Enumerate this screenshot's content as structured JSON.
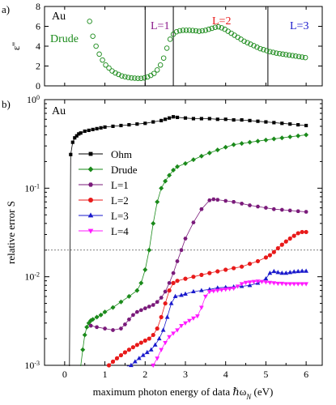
{
  "chart_data": [
    {
      "panel_label": "a)",
      "type": "scatter",
      "title": "",
      "xlabel": "",
      "ylabel": "ε''",
      "xlim": [
        -0.5,
        6.4
      ],
      "ylim": [
        0,
        8
      ],
      "yticks": [
        "0",
        "2",
        "4",
        "6",
        "8"
      ],
      "grid": false,
      "material_label": "Au",
      "series": [
        {
          "name": "Drude",
          "color": "#1a8a1a",
          "marker": "open-circle",
          "x": [
            0.62,
            0.7,
            0.78,
            0.86,
            0.94,
            1.02,
            1.1,
            1.18,
            1.26,
            1.34,
            1.42,
            1.5,
            1.58,
            1.66,
            1.74,
            1.82,
            1.9,
            1.98,
            2.06,
            2.14,
            2.22,
            2.3,
            2.38,
            2.46,
            2.54,
            2.62,
            2.7,
            2.78,
            2.86,
            2.94,
            3.02,
            3.1,
            3.18,
            3.26,
            3.34,
            3.42,
            3.5,
            3.58,
            3.66,
            3.74,
            3.82,
            3.9,
            3.98,
            4.06,
            4.14,
            4.22,
            4.3,
            4.38,
            4.46,
            4.54,
            4.62,
            4.7,
            4.78,
            4.86,
            4.94,
            5.02,
            5.1,
            5.18,
            5.26,
            5.34,
            5.42,
            5.5,
            5.58,
            5.66,
            5.74,
            5.82,
            5.9,
            5.98
          ],
          "y": [
            6.5,
            5.0,
            4.0,
            3.2,
            2.6,
            2.1,
            1.8,
            1.5,
            1.3,
            1.15,
            1.0,
            0.92,
            0.85,
            0.8,
            0.78,
            0.76,
            0.76,
            0.8,
            0.9,
            1.05,
            1.25,
            1.6,
            2.1,
            2.8,
            3.8,
            4.7,
            5.2,
            5.45,
            5.55,
            5.6,
            5.6,
            5.6,
            5.58,
            5.55,
            5.5,
            5.55,
            5.6,
            5.7,
            5.8,
            5.9,
            5.95,
            5.85,
            5.7,
            5.5,
            5.3,
            5.1,
            4.9,
            4.7,
            4.5,
            4.35,
            4.2,
            4.05,
            3.9,
            3.75,
            3.65,
            3.55,
            3.45,
            3.38,
            3.3,
            3.25,
            3.2,
            3.15,
            3.1,
            3.05,
            3.0,
            2.95,
            2.9,
            2.85
          ]
        }
      ],
      "vertical_lines_x": [
        2.0,
        2.7,
        5.05
      ],
      "region_labels": [
        {
          "text": "L=1",
          "color": "#8b1a8b"
        },
        {
          "text": "L=2",
          "color": "#e81a1a"
        },
        {
          "text": "L=3",
          "color": "#1a1acc"
        }
      ]
    },
    {
      "panel_label": "b)",
      "type": "line",
      "title": "",
      "xlabel": "maximum photon energy of data ℏω",
      "xlabel_subscript": "N",
      "xlabel_unit": " (eV)",
      "ylabel": "relative error S",
      "xlim": [
        -0.5,
        6.4
      ],
      "ylim": [
        0.001,
        1
      ],
      "log_y": true,
      "xticks": [
        "0",
        "1",
        "2",
        "3",
        "4",
        "5",
        "6"
      ],
      "yticks": [
        {
          "base": "10",
          "exp": "0"
        },
        {
          "base": "10",
          "exp": "-1"
        },
        {
          "base": "10",
          "exp": "-2"
        },
        {
          "base": "10",
          "exp": "-3"
        }
      ],
      "grid": false,
      "legend_position": "center-left",
      "material_label": "Au",
      "horizontal_reference_y": 0.02,
      "series": [
        {
          "name": "Ohm",
          "color": "#000000",
          "marker": "square",
          "x": [
            0.12,
            0.15,
            0.2,
            0.25,
            0.3,
            0.35,
            0.4,
            0.5,
            0.6,
            0.7,
            0.8,
            0.9,
            1.0,
            1.2,
            1.4,
            1.6,
            1.8,
            2.0,
            2.2,
            2.4,
            2.5,
            2.6,
            2.7,
            2.8,
            3.0,
            3.2,
            3.4,
            3.6,
            3.8,
            4.0,
            4.2,
            4.4,
            4.6,
            4.8,
            5.0,
            5.2,
            5.4,
            5.6,
            5.8,
            6.0
          ],
          "y": [
            0.0008,
            0.24,
            0.33,
            0.37,
            0.39,
            0.41,
            0.42,
            0.44,
            0.45,
            0.46,
            0.47,
            0.48,
            0.49,
            0.5,
            0.51,
            0.52,
            0.53,
            0.54,
            0.56,
            0.58,
            0.6,
            0.62,
            0.64,
            0.63,
            0.62,
            0.61,
            0.61,
            0.61,
            0.6,
            0.6,
            0.59,
            0.59,
            0.58,
            0.57,
            0.56,
            0.55,
            0.54,
            0.53,
            0.52,
            0.51
          ]
        },
        {
          "name": "Drude",
          "color": "#1a8a1a",
          "marker": "diamond",
          "x": [
            0.4,
            0.45,
            0.5,
            0.55,
            0.6,
            0.65,
            0.7,
            0.8,
            0.9,
            1.0,
            1.2,
            1.4,
            1.6,
            1.8,
            1.9,
            2.0,
            2.1,
            2.2,
            2.3,
            2.4,
            2.5,
            2.6,
            2.7,
            2.8,
            3.0,
            3.2,
            3.4,
            3.6,
            3.8,
            4.0,
            4.2,
            4.4,
            4.6,
            4.8,
            5.0,
            5.2,
            5.4,
            5.6,
            5.8,
            6.0
          ],
          "y": [
            0.0008,
            0.0015,
            0.0022,
            0.0027,
            0.003,
            0.0032,
            0.0033,
            0.0035,
            0.0037,
            0.004,
            0.0045,
            0.0052,
            0.006,
            0.007,
            0.0085,
            0.012,
            0.02,
            0.04,
            0.07,
            0.1,
            0.12,
            0.14,
            0.16,
            0.175,
            0.19,
            0.21,
            0.23,
            0.25,
            0.27,
            0.29,
            0.31,
            0.32,
            0.33,
            0.34,
            0.35,
            0.36,
            0.37,
            0.38,
            0.39,
            0.4
          ]
        },
        {
          "name": "L=1",
          "color": "#7a1a7a",
          "marker": "hexagon",
          "x": [
            0.65,
            0.8,
            1.0,
            1.2,
            1.4,
            1.5,
            1.6,
            1.7,
            1.8,
            1.9,
            2.0,
            2.1,
            2.2,
            2.3,
            2.4,
            2.5,
            2.6,
            2.7,
            2.8,
            2.9,
            3.0,
            3.2,
            3.4,
            3.6,
            3.7,
            3.8,
            4.0,
            4.2,
            4.4,
            4.6,
            4.8,
            5.0,
            5.2,
            5.4,
            5.6,
            5.8,
            6.0
          ],
          "y": [
            0.0028,
            0.0027,
            0.0026,
            0.0025,
            0.0026,
            0.0029,
            0.0033,
            0.0037,
            0.004,
            0.0042,
            0.0044,
            0.0046,
            0.0048,
            0.0052,
            0.0058,
            0.0068,
            0.0085,
            0.011,
            0.015,
            0.02,
            0.027,
            0.041,
            0.058,
            0.073,
            0.075,
            0.074,
            0.072,
            0.07,
            0.067,
            0.064,
            0.062,
            0.06,
            0.058,
            0.057,
            0.056,
            0.055,
            0.054
          ]
        },
        {
          "name": "L=2",
          "color": "#e81a1a",
          "marker": "circle",
          "x": [
            1.05,
            1.1,
            1.2,
            1.3,
            1.4,
            1.5,
            1.6,
            1.7,
            1.8,
            1.9,
            2.0,
            2.1,
            2.2,
            2.3,
            2.4,
            2.5,
            2.6,
            2.7,
            2.8,
            3.0,
            3.2,
            3.4,
            3.6,
            3.8,
            4.0,
            4.2,
            4.4,
            4.6,
            4.8,
            5.0,
            5.1,
            5.2,
            5.3,
            5.4,
            5.5,
            5.6,
            5.7,
            5.8,
            5.9,
            6.0
          ],
          "y": [
            0.0008,
            0.001,
            0.0011,
            0.0012,
            0.0013,
            0.0014,
            0.0015,
            0.0016,
            0.0017,
            0.0018,
            0.0019,
            0.002,
            0.0022,
            0.0026,
            0.0035,
            0.005,
            0.007,
            0.0085,
            0.009,
            0.0095,
            0.01,
            0.0105,
            0.011,
            0.0115,
            0.012,
            0.0125,
            0.013,
            0.014,
            0.015,
            0.0165,
            0.0175,
            0.019,
            0.021,
            0.023,
            0.025,
            0.027,
            0.029,
            0.031,
            0.032,
            0.032
          ]
        },
        {
          "name": "L=3",
          "color": "#1a1acc",
          "marker": "triangle-up",
          "x": [
            1.55,
            1.65,
            1.75,
            1.85,
            1.95,
            2.05,
            2.15,
            2.25,
            2.35,
            2.45,
            2.55,
            2.65,
            2.75,
            2.9,
            3.0,
            3.2,
            3.4,
            3.6,
            3.8,
            4.0,
            4.2,
            4.4,
            4.6,
            4.8,
            5.0,
            5.1,
            5.2,
            5.3,
            5.4,
            5.5,
            5.6,
            5.7,
            5.8,
            5.9,
            6.0
          ],
          "y": [
            0.0008,
            0.001,
            0.0011,
            0.0012,
            0.0013,
            0.0014,
            0.0015,
            0.0017,
            0.002,
            0.0025,
            0.0035,
            0.005,
            0.006,
            0.0062,
            0.0064,
            0.0068,
            0.007,
            0.0072,
            0.0075,
            0.0076,
            0.0077,
            0.0078,
            0.008,
            0.0085,
            0.0095,
            0.011,
            0.0115,
            0.0112,
            0.011,
            0.011,
            0.0112,
            0.0114,
            0.0115,
            0.0116,
            0.0116
          ]
        },
        {
          "name": "L=4",
          "color": "#ff1aff",
          "marker": "triangle-down",
          "x": [
            2.15,
            2.2,
            2.3,
            2.4,
            2.5,
            2.6,
            2.7,
            2.8,
            2.9,
            3.0,
            3.1,
            3.2,
            3.3,
            3.4,
            3.5,
            3.6,
            3.7,
            3.8,
            3.9,
            4.0,
            4.1,
            4.2,
            4.3,
            4.4,
            4.5,
            4.6,
            4.7,
            4.8,
            4.9,
            5.0,
            5.1,
            5.2,
            5.3,
            5.4,
            5.5,
            5.6,
            5.7,
            5.8,
            5.9,
            6.0
          ],
          "y": [
            0.0008,
            0.001,
            0.0012,
            0.0015,
            0.0018,
            0.0021,
            0.0023,
            0.0025,
            0.0028,
            0.003,
            0.0032,
            0.0034,
            0.0036,
            0.0045,
            0.006,
            0.0068,
            0.0069,
            0.007,
            0.0071,
            0.0072,
            0.0073,
            0.0074,
            0.0078,
            0.0083,
            0.0086,
            0.0087,
            0.0088,
            0.0089,
            0.0088,
            0.0087,
            0.0086,
            0.0085,
            0.0084,
            0.0084,
            0.0083,
            0.0083,
            0.0083,
            0.0083,
            0.0083,
            0.0083
          ]
        }
      ]
    }
  ]
}
